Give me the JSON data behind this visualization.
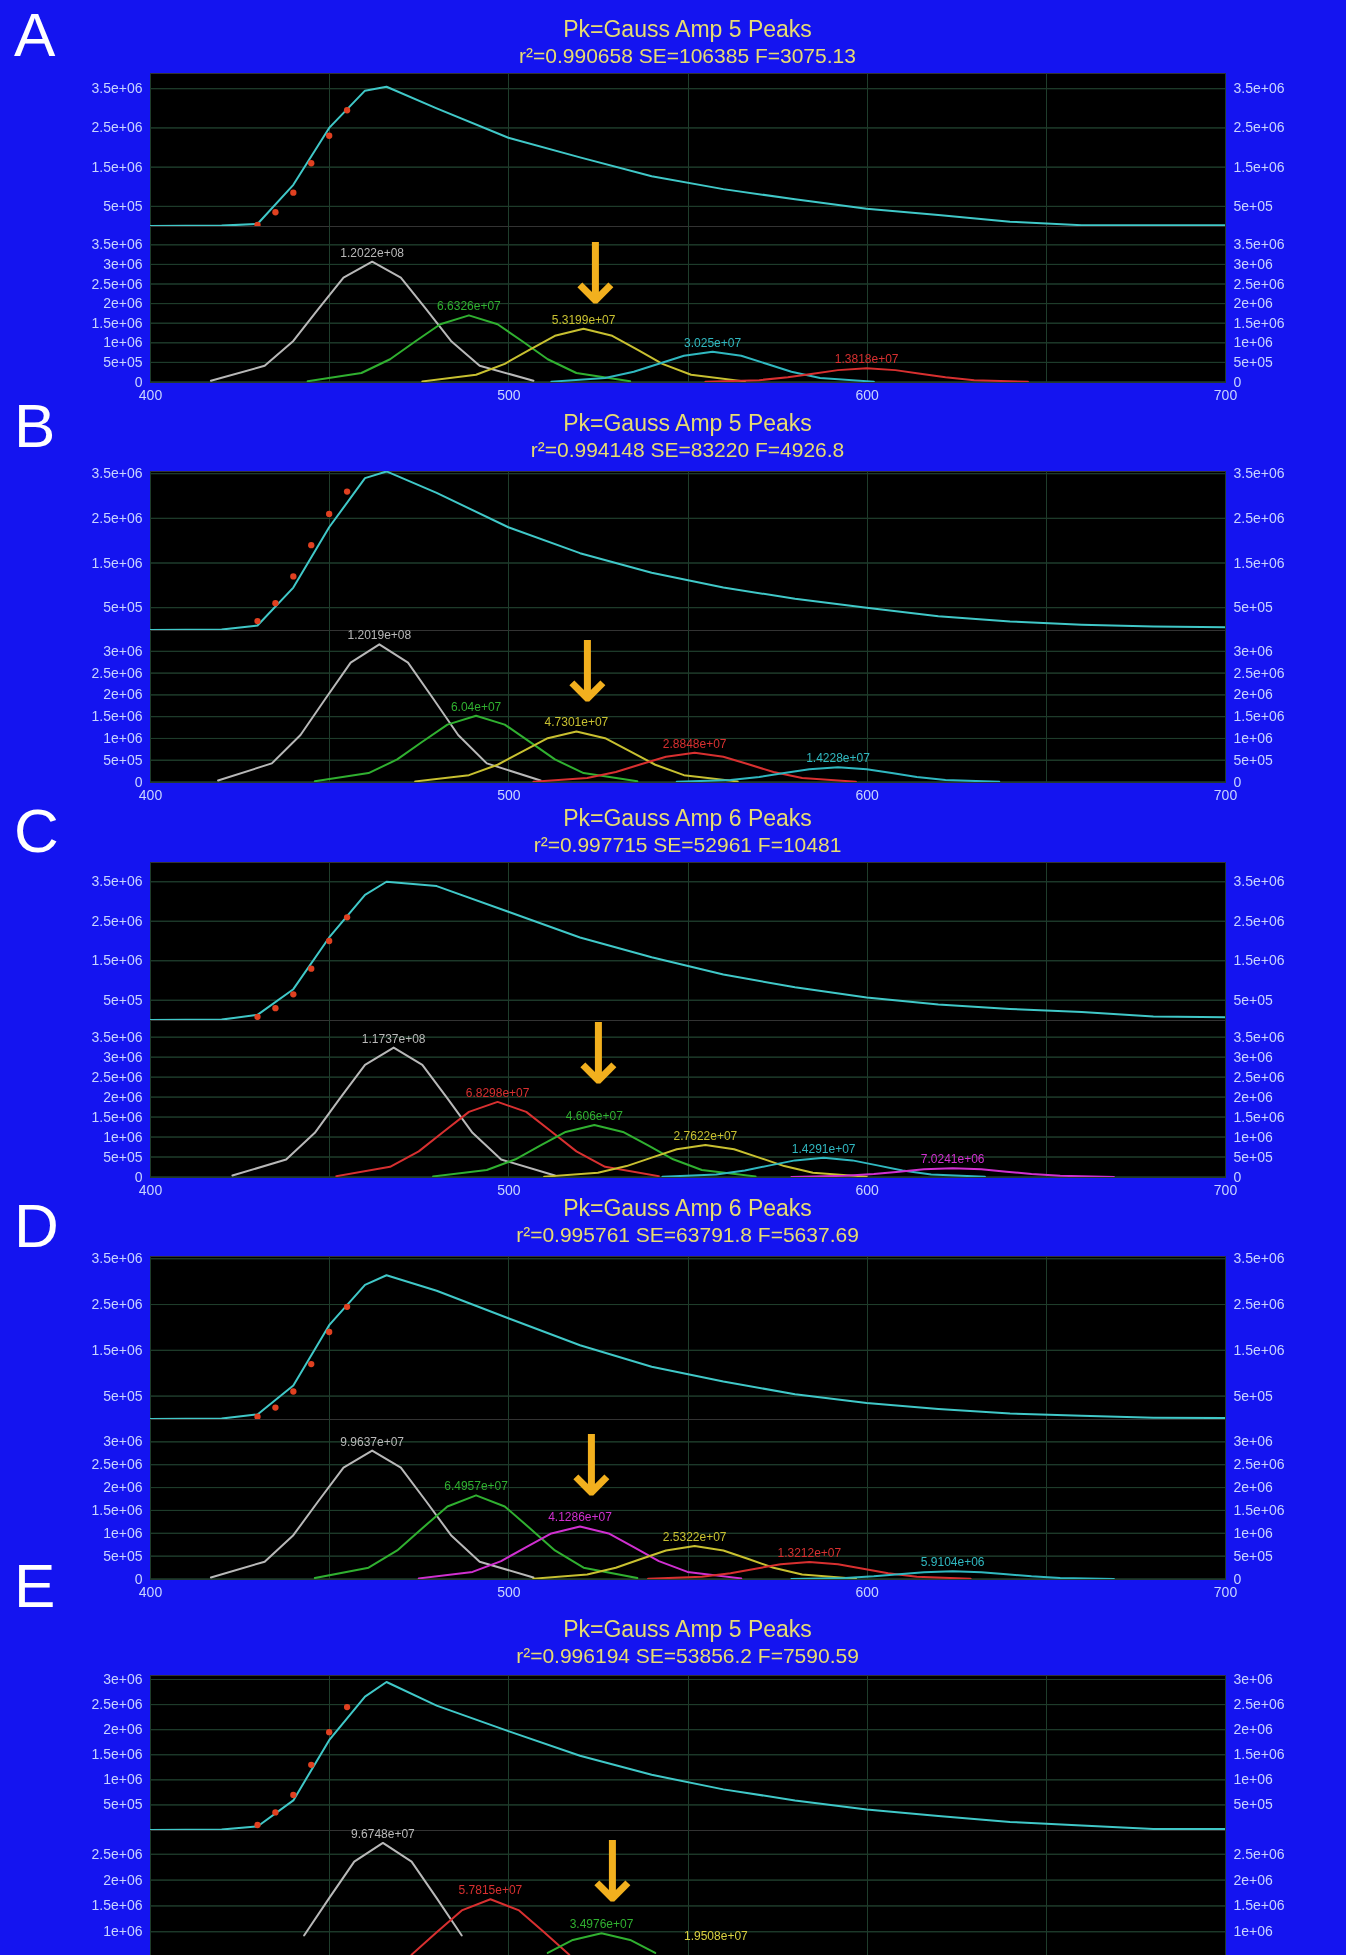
{
  "chart_data": [
    {
      "type": "line",
      "title": "Pk=Gauss Amp  5 Peaks",
      "subtitle": "r²=0.990658  SE=106385  F=3075.13",
      "annotations": [
        "A"
      ],
      "xlim": [
        400,
        700
      ],
      "xticks": [
        400,
        {
          "value": 450,
          "label": null
        },
        500,
        {
          "value": 550,
          "label": null
        },
        600,
        {
          "value": 650,
          "label": null
        },
        700
      ],
      "ylim": [
        0,
        3900000
      ],
      "yticks": [
        {
          "value": 500000,
          "label": "5e+05"
        },
        {
          "value": 1500000,
          "label": "1.5e+06"
        },
        {
          "value": 2500000,
          "label": "2.5e+06"
        },
        {
          "value": 3500000,
          "label": "3.5e+06"
        }
      ],
      "y2lim": [
        0,
        3900000
      ],
      "y2ticks": [
        {
          "value": 500000,
          "label": "5e+05"
        },
        {
          "value": 1500000,
          "label": "1.5e+06"
        },
        {
          "value": 2500000,
          "label": "2.5e+06"
        },
        {
          "value": 3500000,
          "label": "3.5e+06"
        }
      ],
      "grid": true,
      "tick_labels": "y",
      "series": [
        {
          "type": "scatter",
          "marker": "circle",
          "color": "#e04020",
          "x": [
            430,
            435,
            440,
            445,
            450,
            455
          ],
          "values": [
            30000,
            350000,
            850000,
            1600000,
            2300000,
            2950000
          ]
        },
        {
          "type": "line",
          "color": "#40c8c8",
          "x": [
            400,
            420,
            430,
            440,
            450,
            460,
            466,
            480,
            500,
            520,
            540,
            560,
            580,
            600,
            620,
            640,
            660,
            680,
            700
          ],
          "values": [
            0,
            10000,
            50000,
            1050000,
            2500000,
            3450000,
            3550000,
            3000000,
            2250000,
            1750000,
            1270000,
            940000,
            680000,
            440000,
            280000,
            110000,
            20000,
            20000,
            20000
          ]
        }
      ]
    },
    {
      "type": "line",
      "annotations": [
        {
          "text": "1.2022e+08",
          "x": 462,
          "y": 3070000
        },
        {
          "text": "6.6326e+07",
          "x": 489,
          "y": 1700000
        },
        {
          "text": "5.3199e+07",
          "x": 521,
          "y": 1360000
        },
        {
          "text": "3.025e+07",
          "x": 557,
          "y": 770000
        },
        {
          "text": "1.3818e+07",
          "x": 600,
          "y": 350000
        },
        "↓"
      ],
      "xlim": [
        400,
        700
      ],
      "xticks": [
        400,
        {
          "value": 450,
          "label": null
        },
        500,
        {
          "value": 550,
          "label": null
        },
        600,
        {
          "value": 650,
          "label": null
        },
        700
      ],
      "ylim": [
        0,
        3980000
      ],
      "yticks": [
        {
          "value": 0,
          "label": "0"
        },
        {
          "value": 500000,
          "label": "5e+05"
        },
        {
          "value": 1000000,
          "label": "1e+06"
        },
        {
          "value": 1500000,
          "label": "1.5e+06"
        },
        {
          "value": 2000000,
          "label": "2e+06"
        },
        {
          "value": 2500000,
          "label": "2.5e+06"
        },
        {
          "value": 3000000,
          "label": "3e+06"
        },
        {
          "value": 3500000,
          "label": "3.5e+06"
        }
      ],
      "y2lim": [
        0,
        3980000
      ],
      "y2ticks": [
        {
          "value": 0,
          "label": "0"
        },
        {
          "value": 500000,
          "label": "5e+05"
        },
        {
          "value": 1000000,
          "label": "1e+06"
        },
        {
          "value": 1500000,
          "label": "1.5e+06"
        },
        {
          "value": 2000000,
          "label": "2e+06"
        },
        {
          "value": 2500000,
          "label": "2.5e+06"
        },
        {
          "value": 3000000,
          "label": "3e+06"
        },
        {
          "value": 3500000,
          "label": "3.5e+06"
        }
      ],
      "grid": true,
      "series": [
        {
          "color": "#b8b8b8",
          "x": [
            417,
            432,
            440,
            447,
            454,
            462,
            470,
            477,
            484,
            492,
            507
          ],
          "values": [
            34000,
            414000,
            1047000,
            1863000,
            2662000,
            3070000,
            2662000,
            1863000,
            1047000,
            414000,
            34000
          ]
        },
        {
          "color": "#30b030",
          "x": [
            444,
            459,
            467,
            474,
            481,
            489,
            497,
            504,
            511,
            519,
            534
          ],
          "values": [
            19000,
            230000,
            580000,
            1032000,
            1474000,
            1700000,
            1474000,
            1032000,
            580000,
            230000,
            19000
          ]
        },
        {
          "color": "#c8c030",
          "x": [
            476,
            491,
            499,
            506,
            513,
            521,
            529,
            536,
            543,
            551,
            566
          ],
          "values": [
            15000,
            184000,
            464000,
            826000,
            1179000,
            1360000,
            1179000,
            826000,
            464000,
            184000,
            15000
          ]
        },
        {
          "color": "#30b8c0",
          "x": [
            512,
            527,
            535,
            542,
            549,
            557,
            565,
            572,
            579,
            587,
            602
          ],
          "values": [
            8000,
            104000,
            263000,
            467000,
            668000,
            770000,
            668000,
            467000,
            263000,
            104000,
            8000
          ]
        },
        {
          "color": "#d83030",
          "x": [
            555,
            570,
            578,
            585,
            592,
            600,
            608,
            615,
            622,
            630,
            645
          ],
          "values": [
            4000,
            47000,
            119000,
            212000,
            303000,
            350000,
            303000,
            212000,
            119000,
            47000,
            4000
          ]
        }
      ]
    },
    {
      "type": "line",
      "title": "Pk=Gauss Amp  5 Peaks",
      "subtitle": "r²=0.994148  SE=83220  F=4926.8",
      "annotations": [
        "B"
      ],
      "xlim": [
        400,
        700
      ],
      "xticks": [
        400,
        {
          "value": 450,
          "label": null
        },
        500,
        {
          "value": 550,
          "label": null
        },
        600,
        {
          "value": 650,
          "label": null
        },
        700
      ],
      "ylim": [
        0,
        3560000
      ],
      "yticks": [
        {
          "value": 500000,
          "label": "5e+05"
        },
        {
          "value": 1500000,
          "label": "1.5e+06"
        },
        {
          "value": 2500000,
          "label": "2.5e+06"
        },
        {
          "value": 3500000,
          "label": "3.5e+06"
        }
      ],
      "y2lim": [
        0,
        3560000
      ],
      "y2ticks": [
        {
          "value": 500000,
          "label": "5e+05"
        },
        {
          "value": 1500000,
          "label": "1.5e+06"
        },
        {
          "value": 2500000,
          "label": "2.5e+06"
        },
        {
          "value": 3500000,
          "label": "3.5e+06"
        }
      ],
      "grid": true,
      "tick_labels": "y",
      "series": [
        {
          "type": "scatter",
          "marker": "circle",
          "color": "#e04020",
          "x": [
            430,
            435,
            440,
            445,
            450,
            455
          ],
          "values": [
            200000,
            600000,
            1200000,
            1900000,
            2600000,
            3100000
          ]
        },
        {
          "type": "line",
          "color": "#40c8c8",
          "x": [
            400,
            420,
            430,
            440,
            450,
            460,
            466,
            480,
            500,
            520,
            540,
            560,
            580,
            600,
            620,
            640,
            660,
            680,
            700
          ],
          "values": [
            0,
            10000,
            100000,
            950000,
            2300000,
            3400000,
            3550000,
            3070000,
            2300000,
            1720000,
            1280000,
            950000,
            700000,
            500000,
            310000,
            190000,
            120000,
            80000,
            60000
          ]
        }
      ]
    },
    {
      "type": "line",
      "annotations": [
        {
          "text": "1.2019e+08",
          "x": 464,
          "y": 3160000
        },
        {
          "text": "6.04e+07",
          "x": 491,
          "y": 1520000
        },
        {
          "text": "4.7301e+07",
          "x": 519,
          "y": 1160000
        },
        {
          "text": "2.8848e+07",
          "x": 552,
          "y": 670000
        },
        {
          "text": "1.4228e+07",
          "x": 592,
          "y": 340000
        },
        "↓"
      ],
      "xlim": [
        400,
        700
      ],
      "xticks": [
        400,
        {
          "value": 450,
          "label": null
        },
        500,
        {
          "value": 550,
          "label": null
        },
        600,
        {
          "value": 650,
          "label": null
        },
        700
      ],
      "ylim": [
        0,
        3490000
      ],
      "yticks": [
        {
          "value": 0,
          "label": "0"
        },
        {
          "value": 500000,
          "label": "5e+05"
        },
        {
          "value": 1000000,
          "label": "1e+06"
        },
        {
          "value": 1500000,
          "label": "1.5e+06"
        },
        {
          "value": 2000000,
          "label": "2e+06"
        },
        {
          "value": 2500000,
          "label": "2.5e+06"
        },
        {
          "value": 3000000,
          "label": "3e+06"
        }
      ],
      "y2lim": [
        0,
        3490000
      ],
      "y2ticks": [
        {
          "value": 0,
          "label": "0"
        },
        {
          "value": 500000,
          "label": "5e+05"
        },
        {
          "value": 1000000,
          "label": "1e+06"
        },
        {
          "value": 1500000,
          "label": "1.5e+06"
        },
        {
          "value": 2000000,
          "label": "2e+06"
        },
        {
          "value": 2500000,
          "label": "2.5e+06"
        },
        {
          "value": 3000000,
          "label": "3e+06"
        }
      ],
      "grid": true,
      "series": [
        {
          "color": "#b8b8b8",
          "x": [
            419,
            434,
            442,
            449,
            456,
            464,
            472,
            479,
            486,
            494,
            509
          ],
          "values": [
            35000,
            427000,
            1078000,
            1918000,
            2740000,
            3160000,
            2740000,
            1918000,
            1078000,
            427000,
            35000
          ]
        },
        {
          "color": "#30b030",
          "x": [
            446,
            461,
            469,
            476,
            483,
            491,
            499,
            506,
            513,
            521,
            536
          ],
          "values": [
            17000,
            205000,
            518000,
            923000,
            1318000,
            1520000,
            1318000,
            923000,
            518000,
            205000,
            17000
          ]
        },
        {
          "color": "#c8c030",
          "x": [
            474,
            489,
            497,
            504,
            511,
            519,
            527,
            534,
            541,
            549,
            564
          ],
          "values": [
            13000,
            157000,
            396000,
            704000,
            1006000,
            1160000,
            1006000,
            704000,
            396000,
            157000,
            13000
          ]
        },
        {
          "color": "#d83030",
          "x": [
            507,
            522,
            530,
            537,
            544,
            552,
            560,
            567,
            574,
            582,
            597
          ],
          "values": [
            7000,
            90000,
            228000,
            407000,
            581000,
            670000,
            581000,
            407000,
            228000,
            90000,
            7000
          ]
        },
        {
          "color": "#30b8c0",
          "x": [
            547,
            562,
            570,
            577,
            584,
            592,
            600,
            607,
            614,
            622,
            637
          ],
          "values": [
            4000,
            46000,
            116000,
            206000,
            295000,
            340000,
            295000,
            206000,
            116000,
            46000,
            4000
          ]
        }
      ]
    },
    {
      "type": "line",
      "title": "Pk=Gauss Amp  6 Peaks",
      "subtitle": "r²=0.997715  SE=52961  F=10481",
      "annotations": [
        "C"
      ],
      "xlim": [
        400,
        700
      ],
      "xticks": [
        400,
        {
          "value": 450,
          "label": null
        },
        500,
        {
          "value": 550,
          "label": null
        },
        600,
        {
          "value": 650,
          "label": null
        },
        700
      ],
      "ylim": [
        0,
        4000000
      ],
      "yticks": [
        {
          "value": 500000,
          "label": "5e+05"
        },
        {
          "value": 1500000,
          "label": "1.5e+06"
        },
        {
          "value": 2500000,
          "label": "2.5e+06"
        },
        {
          "value": 3500000,
          "label": "3.5e+06"
        }
      ],
      "y2lim": [
        0,
        4000000
      ],
      "y2ticks": [
        {
          "value": 500000,
          "label": "5e+05"
        },
        {
          "value": 1500000,
          "label": "1.5e+06"
        },
        {
          "value": 2500000,
          "label": "2.5e+06"
        },
        {
          "value": 3500000,
          "label": "3.5e+06"
        }
      ],
      "grid": true,
      "tick_labels": "y",
      "series": [
        {
          "type": "scatter",
          "marker": "circle",
          "color": "#e04020",
          "x": [
            430,
            435,
            440,
            445,
            450,
            455
          ],
          "values": [
            80000,
            300000,
            650000,
            1300000,
            2000000,
            2600000
          ]
        },
        {
          "type": "line",
          "color": "#40c8c8",
          "x": [
            400,
            420,
            430,
            440,
            450,
            460,
            466,
            480,
            500,
            520,
            540,
            560,
            580,
            600,
            620,
            640,
            660,
            680,
            700
          ],
          "values": [
            0,
            10000,
            130000,
            780000,
            2090000,
            3170000,
            3500000,
            3390000,
            2740000,
            2090000,
            1590000,
            1150000,
            830000,
            570000,
            390000,
            280000,
            200000,
            90000,
            70000
          ]
        }
      ]
    },
    {
      "type": "line",
      "annotations": [
        {
          "text": "1.1737e+08",
          "x": 468,
          "y": 3240000
        },
        {
          "text": "6.8298e+07",
          "x": 497,
          "y": 1880000
        },
        {
          "text": "4.606e+07",
          "x": 524,
          "y": 1300000
        },
        {
          "text": "2.7622e+07",
          "x": 555,
          "y": 800000
        },
        {
          "text": "1.4291e+07",
          "x": 588,
          "y": 480000
        },
        {
          "text": "7.0241e+06",
          "x": 624,
          "y": 220000
        },
        "↓"
      ],
      "xlim": [
        400,
        700
      ],
      "xticks": [
        400,
        {
          "value": 450,
          "label": null
        },
        500,
        {
          "value": 550,
          "label": null
        },
        600,
        {
          "value": 650,
          "label": null
        },
        700
      ],
      "ylim": [
        0,
        3930000
      ],
      "yticks": [
        {
          "value": 0,
          "label": "0"
        },
        {
          "value": 500000,
          "label": "5e+05"
        },
        {
          "value": 1000000,
          "label": "1e+06"
        },
        {
          "value": 1500000,
          "label": "1.5e+06"
        },
        {
          "value": 2000000,
          "label": "2e+06"
        },
        {
          "value": 2500000,
          "label": "2.5e+06"
        },
        {
          "value": 3000000,
          "label": "3e+06"
        },
        {
          "value": 3500000,
          "label": "3.5e+06"
        }
      ],
      "y2lim": [
        0,
        3930000
      ],
      "y2ticks": [
        {
          "value": 0,
          "label": "0"
        },
        {
          "value": 500000,
          "label": "5e+05"
        },
        {
          "value": 1000000,
          "label": "1e+06"
        },
        {
          "value": 1500000,
          "label": "1.5e+06"
        },
        {
          "value": 2000000,
          "label": "2e+06"
        },
        {
          "value": 2500000,
          "label": "2.5e+06"
        },
        {
          "value": 3000000,
          "label": "3e+06"
        },
        {
          "value": 3500000,
          "label": "3.5e+06"
        }
      ],
      "grid": true,
      "series": [
        {
          "color": "#b8b8b8",
          "x": [
            423,
            438,
            446,
            453,
            460,
            468,
            476,
            483,
            490,
            498,
            513
          ],
          "values": [
            36000,
            437000,
            1105000,
            1967000,
            2809000,
            3240000,
            2809000,
            1967000,
            1105000,
            437000,
            36000
          ]
        },
        {
          "color": "#d83030",
          "x": [
            452,
            467,
            475,
            482,
            489,
            497,
            505,
            512,
            519,
            527,
            542
          ],
          "values": [
            21000,
            254000,
            641000,
            1141000,
            1630000,
            1880000,
            1630000,
            1141000,
            641000,
            254000,
            21000
          ]
        },
        {
          "color": "#30b030",
          "x": [
            479,
            494,
            502,
            509,
            516,
            524,
            532,
            539,
            546,
            554,
            569
          ],
          "values": [
            14000,
            176000,
            443000,
            789000,
            1127000,
            1300000,
            1127000,
            789000,
            443000,
            176000,
            14000
          ]
        },
        {
          "color": "#c8c030",
          "x": [
            510,
            525,
            533,
            540,
            547,
            555,
            563,
            570,
            577,
            585,
            600
          ],
          "values": [
            9000,
            108000,
            273000,
            486000,
            694000,
            800000,
            694000,
            486000,
            273000,
            108000,
            9000
          ]
        },
        {
          "color": "#30b8c0",
          "x": [
            543,
            558,
            566,
            573,
            580,
            588,
            596,
            603,
            610,
            618,
            633
          ],
          "values": [
            5000,
            65000,
            164000,
            291000,
            416000,
            480000,
            416000,
            291000,
            164000,
            65000,
            5000
          ]
        },
        {
          "color": "#d030d0",
          "x": [
            579,
            594,
            602,
            609,
            616,
            624,
            632,
            639,
            646,
            654,
            669
          ],
          "values": [
            2000,
            30000,
            75000,
            134000,
            191000,
            220000,
            191000,
            134000,
            75000,
            30000,
            2000
          ]
        }
      ]
    },
    {
      "type": "line",
      "title": "Pk=Gauss Amp  6 Peaks",
      "subtitle": "r²=0.995761  SE=63791.8  F=5637.69",
      "annotations": [
        "D"
      ],
      "xlim": [
        400,
        700
      ],
      "xticks": [
        400,
        {
          "value": 450,
          "label": null
        },
        500,
        {
          "value": 550,
          "label": null
        },
        600,
        {
          "value": 650,
          "label": null
        },
        700
      ],
      "ylim": [
        0,
        3560000
      ],
      "yticks": [
        {
          "value": 500000,
          "label": "5e+05"
        },
        {
          "value": 1500000,
          "label": "1.5e+06"
        },
        {
          "value": 2500000,
          "label": "2.5e+06"
        },
        {
          "value": 3500000,
          "label": "3.5e+06"
        }
      ],
      "y2lim": [
        0,
        3560000
      ],
      "y2ticks": [
        {
          "value": 500000,
          "label": "5e+05"
        },
        {
          "value": 1500000,
          "label": "1.5e+06"
        },
        {
          "value": 2500000,
          "label": "2.5e+06"
        },
        {
          "value": 3500000,
          "label": "3.5e+06"
        }
      ],
      "grid": true,
      "tick_labels": "y",
      "series": [
        {
          "type": "scatter",
          "marker": "circle",
          "color": "#e04020",
          "x": [
            430,
            435,
            440,
            445,
            450,
            455
          ],
          "values": [
            50000,
            250000,
            600000,
            1200000,
            1900000,
            2450000
          ]
        },
        {
          "type": "line",
          "color": "#40c8c8",
          "x": [
            400,
            420,
            430,
            440,
            450,
            460,
            466,
            480,
            500,
            520,
            540,
            560,
            580,
            600,
            620,
            640,
            660,
            680,
            700
          ],
          "values": [
            0,
            10000,
            100000,
            730000,
            2050000,
            2930000,
            3140000,
            2800000,
            2200000,
            1610000,
            1140000,
            820000,
            540000,
            350000,
            220000,
            120000,
            70000,
            30000,
            20000
          ]
        }
      ]
    },
    {
      "type": "line",
      "annotations": [
        {
          "text": "9.9637e+07",
          "x": 462,
          "y": 2810000
        },
        {
          "text": "6.4957e+07",
          "x": 491,
          "y": 1830000
        },
        {
          "text": "4.1286e+07",
          "x": 520,
          "y": 1150000
        },
        {
          "text": "2.5322e+07",
          "x": 552,
          "y": 720000
        },
        {
          "text": "1.3212e+07",
          "x": 584,
          "y": 370000
        },
        {
          "text": "5.9104e+06",
          "x": 624,
          "y": 170000
        },
        "↓"
      ],
      "xlim": [
        400,
        700
      ],
      "xticks": [
        400,
        {
          "value": 450,
          "label": null
        },
        500,
        {
          "value": 550,
          "label": null
        },
        600,
        {
          "value": 650,
          "label": null
        },
        700
      ],
      "ylim": [
        0,
        3500000
      ],
      "yticks": [
        {
          "value": 0,
          "label": "0"
        },
        {
          "value": 500000,
          "label": "5e+05"
        },
        {
          "value": 1000000,
          "label": "1e+06"
        },
        {
          "value": 1500000,
          "label": "1.5e+06"
        },
        {
          "value": 2000000,
          "label": "2e+06"
        },
        {
          "value": 2500000,
          "label": "2.5e+06"
        },
        {
          "value": 3000000,
          "label": "3e+06"
        }
      ],
      "y2lim": [
        0,
        3500000
      ],
      "y2ticks": [
        {
          "value": 0,
          "label": "0"
        },
        {
          "value": 500000,
          "label": "5e+05"
        },
        {
          "value": 1000000,
          "label": "1e+06"
        },
        {
          "value": 1500000,
          "label": "1.5e+06"
        },
        {
          "value": 2000000,
          "label": "2e+06"
        },
        {
          "value": 2500000,
          "label": "2.5e+06"
        },
        {
          "value": 3000000,
          "label": "3e+06"
        }
      ],
      "grid": true,
      "series": [
        {
          "color": "#b8b8b8",
          "x": [
            417,
            432,
            440,
            447,
            454,
            462,
            470,
            477,
            484,
            492,
            507
          ],
          "values": [
            31000,
            379000,
            958000,
            1706000,
            2436000,
            2810000,
            2436000,
            1706000,
            958000,
            379000,
            31000
          ]
        },
        {
          "color": "#30b030",
          "x": [
            446,
            461,
            469,
            476,
            483,
            491,
            499,
            506,
            513,
            521,
            536
          ],
          "values": [
            20000,
            247000,
            624000,
            1111000,
            1587000,
            1830000,
            1587000,
            1111000,
            624000,
            247000,
            20000
          ]
        },
        {
          "color": "#d030d0",
          "x": [
            475,
            490,
            498,
            505,
            512,
            520,
            528,
            535,
            542,
            550,
            565
          ],
          "values": [
            13000,
            155000,
            392000,
            698000,
            997000,
            1150000,
            997000,
            698000,
            392000,
            155000,
            13000
          ]
        },
        {
          "color": "#c8c030",
          "x": [
            507,
            522,
            530,
            537,
            544,
            552,
            560,
            567,
            574,
            582,
            597
          ],
          "values": [
            8000,
            97000,
            246000,
            437000,
            624000,
            720000,
            624000,
            437000,
            246000,
            97000,
            8000
          ]
        },
        {
          "color": "#d83030",
          "x": [
            539,
            554,
            562,
            569,
            576,
            584,
            592,
            599,
            606,
            614,
            629
          ],
          "values": [
            4000,
            50000,
            126000,
            225000,
            321000,
            370000,
            321000,
            225000,
            126000,
            50000,
            4000
          ]
        },
        {
          "color": "#30b8c0",
          "x": [
            579,
            594,
            602,
            609,
            616,
            624,
            632,
            639,
            646,
            654,
            669
          ],
          "values": [
            2000,
            23000,
            58000,
            103000,
            147000,
            170000,
            147000,
            103000,
            58000,
            23000,
            2000
          ]
        }
      ]
    },
    {
      "type": "line",
      "title": "Pk=Gauss Amp  5 Peaks",
      "subtitle": "r²=0.996194  SE=53856.2  F=7590.59",
      "annotations": [
        "E"
      ],
      "xlim": [
        400,
        700
      ],
      "xticks": [
        400,
        {
          "value": 450,
          "label": null
        },
        500,
        {
          "value": 550,
          "label": null
        },
        600,
        {
          "value": 650,
          "label": null
        },
        700
      ],
      "ylim": [
        0,
        3090000
      ],
      "yticks": [
        {
          "value": 500000,
          "label": "5e+05"
        },
        {
          "value": 1000000,
          "label": "1e+06"
        },
        {
          "value": 1500000,
          "label": "1.5e+06"
        },
        {
          "value": 2000000,
          "label": "2e+06"
        },
        {
          "value": 2500000,
          "label": "2.5e+06"
        },
        {
          "value": 3000000,
          "label": "3e+06"
        }
      ],
      "y2lim": [
        0,
        3090000
      ],
      "y2ticks": [
        {
          "value": 500000,
          "label": "5e+05"
        },
        {
          "value": 1000000,
          "label": "1e+06"
        },
        {
          "value": 1500000,
          "label": "1.5e+06"
        },
        {
          "value": 2000000,
          "label": "2e+06"
        },
        {
          "value": 2500000,
          "label": "2.5e+06"
        },
        {
          "value": 3000000,
          "label": "3e+06"
        }
      ],
      "grid": true,
      "tick_labels": "y",
      "series": [
        {
          "type": "scatter",
          "marker": "circle",
          "color": "#e04020",
          "x": [
            430,
            435,
            440,
            445,
            450,
            455
          ],
          "values": [
            100000,
            350000,
            700000,
            1300000,
            1950000,
            2450000
          ]
        },
        {
          "type": "line",
          "color": "#40c8c8",
          "x": [
            400,
            420,
            430,
            440,
            450,
            460,
            466,
            480,
            500,
            520,
            540,
            560,
            580,
            600,
            620,
            640,
            660,
            680,
            700
          ],
          "values": [
            0,
            10000,
            70000,
            590000,
            1790000,
            2660000,
            2950000,
            2480000,
            1970000,
            1480000,
            1100000,
            810000,
            590000,
            410000,
            280000,
            160000,
            90000,
            20000,
            20000
          ]
        }
      ]
    },
    {
      "type": "line",
      "annotations": [
        {
          "text": "9.6748e+07",
          "x": 465,
          "y": 2720000
        },
        {
          "text": "5.7815e+07",
          "x": 495,
          "y": 1630000
        },
        {
          "text": "3.4976e+07",
          "x": 526,
          "y": 970000
        },
        "1.9508e+07",
        "↓"
      ],
      "xlim": [
        400,
        700
      ],
      "xticks": [
        400,
        {
          "value": 450,
          "label": null
        },
        500,
        {
          "value": 550,
          "label": null
        },
        600,
        {
          "value": 650,
          "label": null
        },
        700
      ],
      "ylim": [
        550000,
        2970000
      ],
      "yticks": [
        {
          "value": 1000000,
          "label": "1e+06"
        },
        {
          "value": 1500000,
          "label": "1.5e+06"
        },
        {
          "value": 2000000,
          "label": "2e+06"
        },
        {
          "value": 2500000,
          "label": "2.5e+06"
        }
      ],
      "y2lim": [
        550000,
        2970000
      ],
      "y2ticks": [
        {
          "value": 1000000,
          "label": "1e+06"
        },
        {
          "value": 1500000,
          "label": "1.5e+06"
        },
        {
          "value": 2000000,
          "label": "2e+06"
        },
        {
          "value": 2500000,
          "label": "2.5e+06"
        }
      ],
      "grid": true,
      "tick_labels": "y",
      "series": [
        {
          "color": "#b8b8b8",
          "x": [
            443,
            450,
            457,
            465,
            473,
            480,
            487
          ],
          "values": [
            928000,
            1651000,
            2358000,
            2720000,
            2358000,
            1651000,
            928000
          ]
        },
        {
          "color": "#d83030",
          "x": [
            473,
            480,
            487,
            495,
            503,
            510,
            517
          ],
          "values": [
            556000,
            989000,
            1413000,
            1630000,
            1413000,
            989000,
            556000
          ]
        },
        {
          "color": "#30b030",
          "x": [
            511,
            518,
            526,
            534,
            541
          ],
          "values": [
            589000,
            841000,
            970000,
            841000,
            589000
          ]
        }
      ]
    }
  ]
}
